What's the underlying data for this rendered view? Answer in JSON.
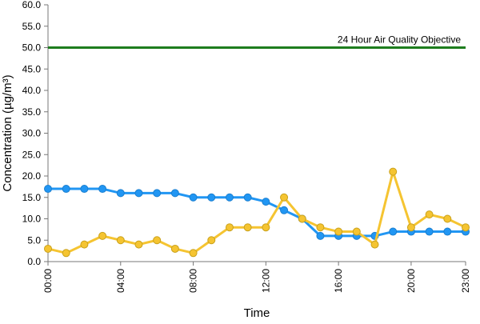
{
  "chart_data": {
    "type": "line",
    "xlabel": "Time",
    "ylabel": "Concentration (µg/m³)",
    "ylim": [
      0,
      60
    ],
    "yticks": [
      "0.0",
      "5.0",
      "10.0",
      "15.0",
      "20.0",
      "25.0",
      "30.0",
      "35.0",
      "40.0",
      "45.0",
      "50.0",
      "55.0",
      "60.0"
    ],
    "xlim": [
      0,
      23
    ],
    "xticks": [
      {
        "x": 0,
        "label": "00:00"
      },
      {
        "x": 4,
        "label": "04:00"
      },
      {
        "x": 8,
        "label": "08:00"
      },
      {
        "x": 12,
        "label": "12:00"
      },
      {
        "x": 16,
        "label": "16:00"
      },
      {
        "x": 20,
        "label": "20:00"
      },
      {
        "x": 23,
        "label": "23:00"
      }
    ],
    "grid": false,
    "x": [
      0,
      1,
      2,
      3,
      4,
      5,
      6,
      7,
      8,
      9,
      10,
      11,
      12,
      13,
      14,
      15,
      16,
      17,
      18,
      19,
      20,
      21,
      22,
      23
    ],
    "series": [
      {
        "color": "#2196f3",
        "values": [
          17,
          17,
          17,
          17,
          16,
          16,
          16,
          16,
          15,
          15,
          15,
          15,
          14,
          12,
          10,
          6,
          6,
          6,
          6,
          7,
          7,
          7,
          7,
          7
        ]
      },
      {
        "color": "#f5c431",
        "values": [
          3,
          2,
          4,
          6,
          5,
          4,
          5,
          3,
          2,
          5,
          8,
          8,
          8,
          15,
          10,
          8,
          7,
          7,
          4,
          21,
          8,
          11,
          10,
          8
        ]
      }
    ],
    "reference_line": {
      "value": 50,
      "label": "24 Hour Air Quality Objective",
      "color": "#1e7d1e"
    }
  }
}
